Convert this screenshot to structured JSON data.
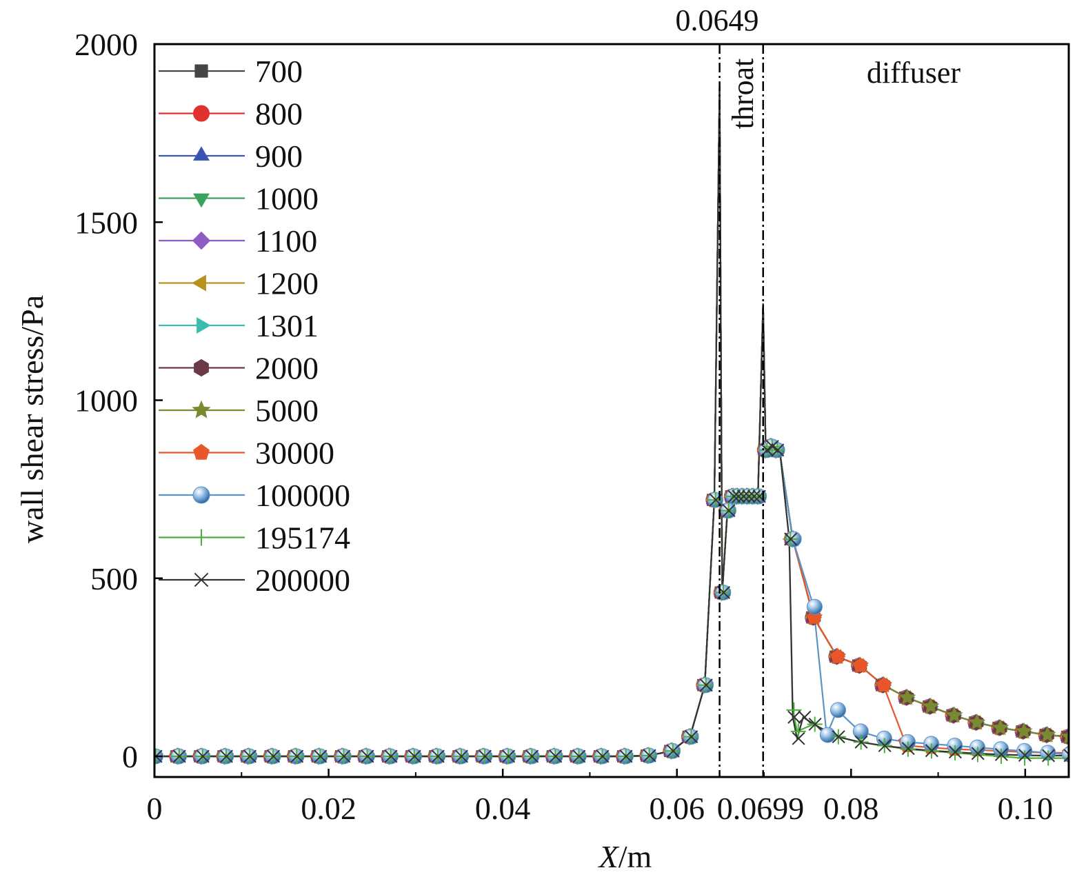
{
  "chart_data": {
    "type": "line",
    "title": "",
    "xlabel": "X/m",
    "xlabel_var": "X",
    "xlabel_unit": "/m",
    "ylabel": "wall shear stress/Pa",
    "xlim": [
      0,
      0.105
    ],
    "ylim": [
      -100,
      2000
    ],
    "xticks": [
      0,
      0.02,
      0.04,
      0.06,
      0.08,
      0.1
    ],
    "xtick_labels": [
      "0",
      "0.02",
      "0.04",
      "0.06",
      "0.08",
      "0.10"
    ],
    "yticks": [
      0,
      500,
      1000,
      1500,
      2000
    ],
    "ytick_labels": [
      "0",
      "500",
      "1000",
      "1500",
      "2000"
    ],
    "grid": false,
    "legend_position": "top-left",
    "annotations": {
      "top_label": "0.0649",
      "axis_label": "0.0699",
      "throat": "throat",
      "diffuser": "diffuser"
    },
    "vlines": [
      0.0649,
      0.0699
    ],
    "common_x": [
      0,
      0.0027,
      0.0054,
      0.0081,
      0.0108,
      0.0135,
      0.0162,
      0.0189,
      0.0216,
      0.0243,
      0.027,
      0.0297,
      0.0324,
      0.0351,
      0.0378,
      0.0405,
      0.0432,
      0.0459,
      0.0486,
      0.0513,
      0.054,
      0.0567,
      0.0594,
      0.0615,
      0.0632,
      0.0643,
      0.0649,
      0.0652,
      0.0658,
      0.0664,
      0.0669,
      0.0675,
      0.0681,
      0.0687,
      0.0693,
      0.0699,
      0.0702,
      0.0708,
      0.0714,
      0.0719
    ],
    "common_y": [
      0,
      0,
      0,
      0,
      0,
      0,
      0,
      0,
      0,
      0,
      0,
      0,
      0,
      0,
      0,
      0,
      0,
      0,
      0,
      0,
      0,
      2,
      15,
      55,
      200,
      720,
      1880,
      460,
      690,
      730,
      730,
      730,
      730,
      730,
      730,
      1270,
      860,
      870,
      860,
      840
    ],
    "series": [
      {
        "name": "700",
        "color": "#444444",
        "marker": "square",
        "tail_x": [
          0.0733,
          0.0757,
          0.0784,
          0.081,
          0.0837,
          0.0864,
          0.0891,
          0.0918,
          0.0944,
          0.0971,
          0.0998,
          0.1025,
          0.105
        ],
        "tail_y": [
          610,
          390,
          280,
          255,
          200,
          165,
          140,
          115,
          95,
          80,
          70,
          60,
          55
        ]
      },
      {
        "name": "800",
        "color": "#e03030",
        "marker": "circle",
        "tail_x": [
          0.0733,
          0.0757,
          0.0784,
          0.081,
          0.0837,
          0.0864,
          0.0891,
          0.0918,
          0.0944,
          0.0971,
          0.0998,
          0.1025,
          0.105
        ],
        "tail_y": [
          610,
          390,
          280,
          255,
          200,
          165,
          140,
          115,
          95,
          80,
          70,
          60,
          55
        ]
      },
      {
        "name": "900",
        "color": "#3a55b0",
        "marker": "triangle-up",
        "tail_x": [
          0.0733,
          0.0757,
          0.0784,
          0.081,
          0.0837,
          0.0864,
          0.0891,
          0.0918,
          0.0944,
          0.0971,
          0.0998,
          0.1025,
          0.105
        ],
        "tail_y": [
          610,
          390,
          280,
          255,
          200,
          165,
          140,
          115,
          95,
          80,
          70,
          60,
          55
        ]
      },
      {
        "name": "1000",
        "color": "#3aa35a",
        "marker": "triangle-down",
        "tail_x": [
          0.0733,
          0.0757,
          0.0784,
          0.081,
          0.0837,
          0.0864,
          0.0891,
          0.0918,
          0.0944,
          0.0971,
          0.0998,
          0.1025,
          0.105
        ],
        "tail_y": [
          610,
          390,
          280,
          255,
          200,
          165,
          140,
          115,
          95,
          80,
          70,
          60,
          55
        ]
      },
      {
        "name": "1100",
        "color": "#8e5cc2",
        "marker": "diamond",
        "tail_x": [
          0.0733,
          0.0757,
          0.0784,
          0.081,
          0.0837,
          0.0864,
          0.0891,
          0.0918,
          0.0944,
          0.0971,
          0.0998,
          0.1025,
          0.105
        ],
        "tail_y": [
          610,
          390,
          280,
          255,
          200,
          165,
          140,
          115,
          95,
          80,
          70,
          60,
          55
        ]
      },
      {
        "name": "1200",
        "color": "#b8921e",
        "marker": "triangle-left",
        "tail_x": [
          0.0733,
          0.0757,
          0.0784,
          0.081,
          0.0837,
          0.0864,
          0.0891,
          0.0918,
          0.0944,
          0.0971,
          0.0998,
          0.1025,
          0.105
        ],
        "tail_y": [
          610,
          390,
          280,
          255,
          200,
          165,
          140,
          115,
          95,
          80,
          70,
          60,
          55
        ]
      },
      {
        "name": "1301",
        "color": "#3dbdb0",
        "marker": "triangle-right",
        "tail_x": [
          0.0733,
          0.0757,
          0.0784,
          0.081,
          0.0837,
          0.0864,
          0.0891,
          0.0918,
          0.0944,
          0.0971,
          0.0998,
          0.1025,
          0.105
        ],
        "tail_y": [
          610,
          390,
          280,
          255,
          200,
          165,
          140,
          115,
          95,
          80,
          70,
          60,
          55
        ]
      },
      {
        "name": "2000",
        "color": "#6b3a46",
        "marker": "hexagon",
        "tail_x": [
          0.0733,
          0.0757,
          0.0784,
          0.081,
          0.0837,
          0.0864,
          0.0891,
          0.0918,
          0.0944,
          0.0971,
          0.0998,
          0.1025,
          0.105
        ],
        "tail_y": [
          610,
          390,
          280,
          255,
          200,
          165,
          140,
          115,
          95,
          80,
          70,
          60,
          55
        ]
      },
      {
        "name": "5000",
        "color": "#7a8a2e",
        "marker": "star",
        "tail_x": [
          0.0733,
          0.0757,
          0.0784,
          0.081,
          0.0837,
          0.0864,
          0.0891,
          0.0918,
          0.0944,
          0.0971,
          0.0998,
          0.1025,
          0.105
        ],
        "tail_y": [
          610,
          390,
          280,
          255,
          200,
          165,
          140,
          115,
          95,
          80,
          70,
          60,
          55
        ]
      },
      {
        "name": "30000",
        "color": "#e8562a",
        "marker": "pentagon",
        "tail_x": [
          0.0733,
          0.0757,
          0.0784,
          0.081,
          0.0837,
          0.0862,
          0.0864,
          0.0891,
          0.0918,
          0.0944,
          0.0971,
          0.0998,
          0.1025,
          0.105
        ],
        "tail_y": [
          610,
          390,
          280,
          255,
          200,
          40,
          30,
          25,
          20,
          18,
          15,
          12,
          10,
          10
        ]
      },
      {
        "name": "100000",
        "color": "#5b93c9",
        "marker": "sphere",
        "tail_x": [
          0.0733,
          0.0757,
          0.0772,
          0.0784,
          0.081,
          0.0837,
          0.0864,
          0.0891,
          0.0918,
          0.0944,
          0.0971,
          0.0998,
          0.1025,
          0.105
        ],
        "tail_y": [
          610,
          420,
          60,
          130,
          70,
          50,
          40,
          35,
          30,
          25,
          20,
          15,
          10,
          5
        ]
      },
      {
        "name": "195174",
        "color": "#4caf3a",
        "marker": "plus",
        "tail_x": [
          0.0729,
          0.0733,
          0.0738,
          0.0757,
          0.0784,
          0.081,
          0.0837,
          0.0864,
          0.0891,
          0.0918,
          0.0944,
          0.0971,
          0.0998,
          0.1025,
          0.105
        ],
        "tail_y": [
          610,
          130,
          70,
          90,
          55,
          40,
          30,
          20,
          15,
          10,
          5,
          0,
          -5,
          -5,
          -5
        ]
      },
      {
        "name": "200000",
        "color": "#333333",
        "marker": "x",
        "tail_x": [
          0.0729,
          0.0733,
          0.0738,
          0.0745,
          0.0757,
          0.0784,
          0.081,
          0.0837,
          0.0864,
          0.0891,
          0.0918,
          0.0944,
          0.0971,
          0.0998,
          0.1025,
          0.105
        ],
        "tail_y": [
          610,
          110,
          50,
          110,
          90,
          55,
          40,
          30,
          22,
          16,
          12,
          8,
          5,
          3,
          2,
          2
        ]
      }
    ]
  }
}
